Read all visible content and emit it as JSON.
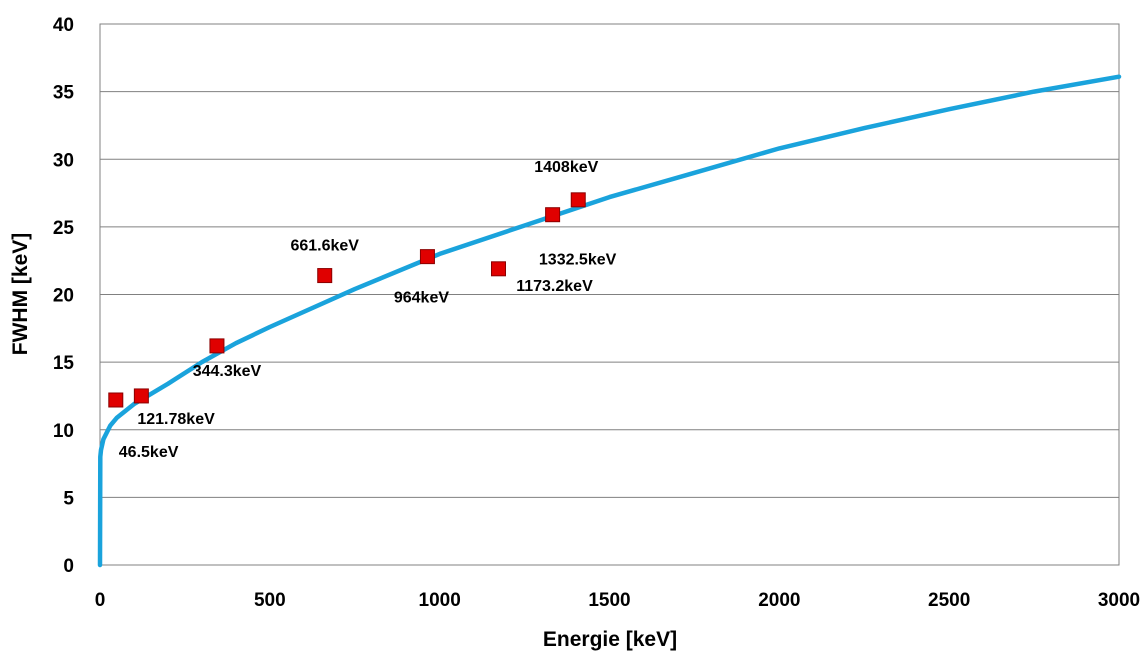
{
  "chart_data": {
    "type": "scatter",
    "xlabel": "Energie [keV]",
    "ylabel": "FWHM [keV]",
    "xlim": [
      0,
      3000
    ],
    "ylim": [
      0,
      40
    ],
    "x_ticks": [
      0,
      500,
      1000,
      1500,
      2000,
      2500,
      3000
    ],
    "y_ticks": [
      0,
      5,
      10,
      15,
      20,
      25,
      30,
      35,
      40
    ],
    "x_tick_labels": [
      "0",
      "500",
      "1000",
      "1500",
      "2000",
      "2500",
      "3000"
    ],
    "y_tick_labels": [
      "0",
      "5",
      "10",
      "15",
      "20",
      "25",
      "30",
      "35",
      "40"
    ],
    "grid": "horizontal",
    "series": [
      {
        "kind": "points",
        "color": "#e00000",
        "marker": "square",
        "x": [
          46.5,
          121.78,
          344.3,
          661.6,
          964,
          1173.2,
          1332.5,
          1408
        ],
        "y": [
          12.2,
          12.5,
          16.2,
          21.4,
          22.8,
          21.9,
          25.9,
          27.0
        ],
        "labels": [
          "46.5keV",
          "121.78keV",
          "344.3keV",
          "661.6keV",
          "964keV",
          "1173.2keV",
          "1332.5keV",
          "1408keV"
        ]
      },
      {
        "kind": "fit-curve",
        "color": "#1aa3dc",
        "x": [
          0,
          1,
          3,
          10,
          30,
          50,
          100,
          200,
          300,
          400,
          500,
          750,
          1000,
          1250,
          1500,
          1750,
          2000,
          2250,
          2500,
          2750,
          3000
        ],
        "y": [
          0.0,
          8.0,
          8.5,
          9.3,
          10.3,
          10.9,
          11.9,
          13.4,
          15.0,
          16.4,
          17.6,
          20.4,
          23.0,
          25.1,
          27.2,
          29.0,
          30.8,
          32.3,
          33.7,
          35.0,
          36.1
        ]
      }
    ]
  }
}
